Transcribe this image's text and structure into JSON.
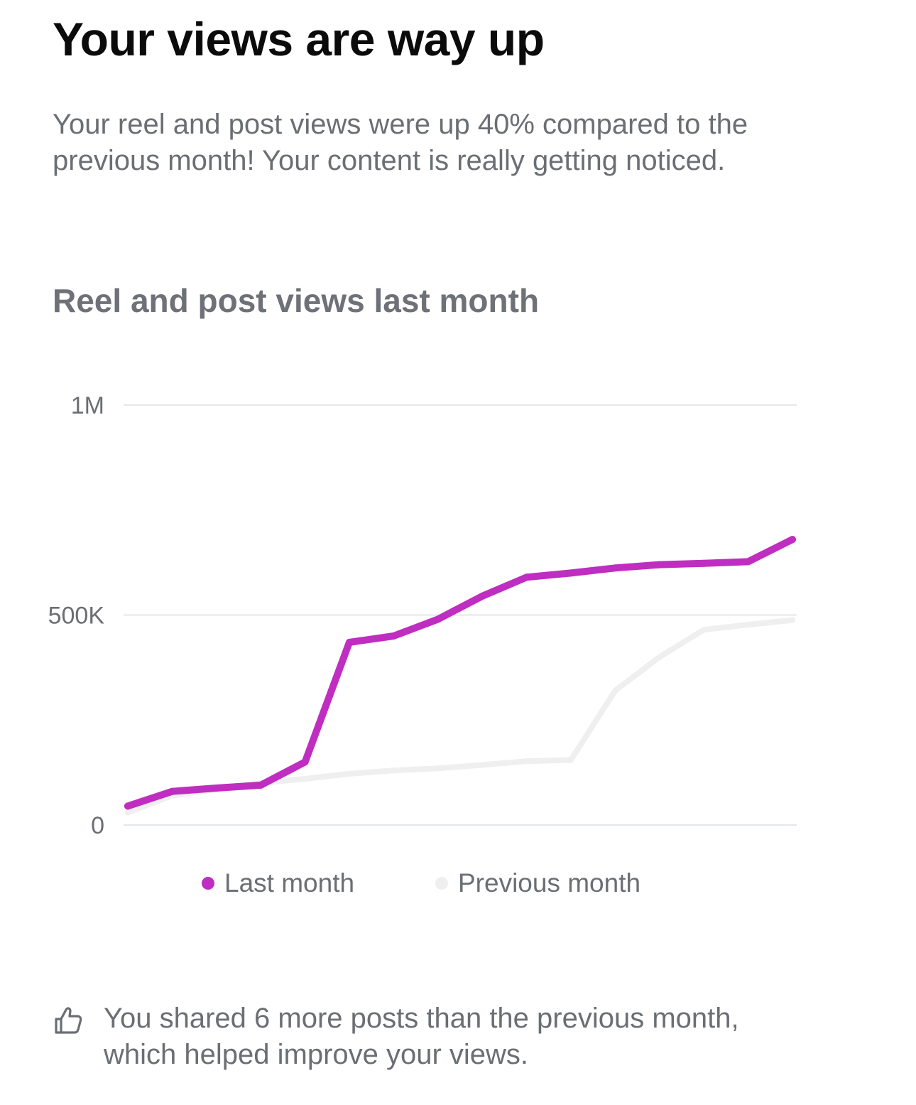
{
  "header": {
    "title": "Your views are way up"
  },
  "summary": {
    "line1": "Your reel and post views were up 40% compared to the",
    "line2": "previous month! Your content is really getting noticed."
  },
  "chart_data": {
    "type": "line",
    "title": "Reel and post views last month",
    "xlabel": "",
    "ylabel": "",
    "ylim": [
      0,
      1000000
    ],
    "yticks": [
      {
        "value": 0,
        "label": "0"
      },
      {
        "value": 500000,
        "label": "500K"
      },
      {
        "value": 1000000,
        "label": "1M"
      }
    ],
    "x": [
      1,
      2,
      3,
      4,
      5,
      6,
      7,
      8,
      9,
      10,
      11,
      12,
      13,
      14,
      15,
      16
    ],
    "series": [
      {
        "name": "Last month",
        "color": "#bf2ec0",
        "values": [
          45000,
          80000,
          88000,
          95000,
          150000,
          435000,
          450000,
          490000,
          545000,
          590000,
          600000,
          612000,
          620000,
          623000,
          627000,
          680000
        ]
      },
      {
        "name": "Previous month",
        "color": "#efefef",
        "values": [
          30000,
          70000,
          85000,
          100000,
          110000,
          122000,
          130000,
          135000,
          143000,
          152000,
          155000,
          320000,
          400000,
          465000,
          477000,
          488000
        ]
      }
    ],
    "legend_position": "bottom-center"
  },
  "insight": {
    "icon": "thumbs-up-icon",
    "line1": "You shared 6 more posts than the previous month,",
    "line2": "which helped improve your views."
  }
}
